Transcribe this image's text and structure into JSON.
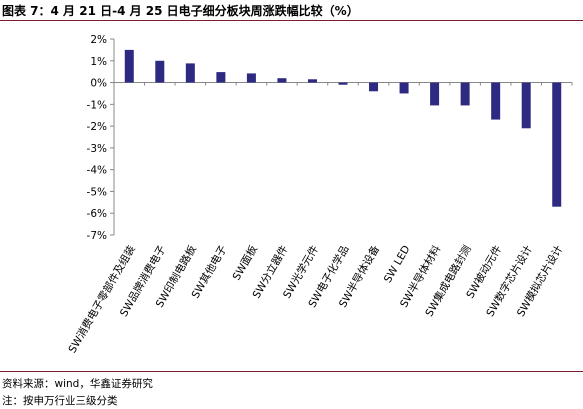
{
  "title": "图表 7：4 月 21 日-4 月 25 日电子细分板块周涨跌幅比较（%）",
  "colors": {
    "bar": "#2e2a82",
    "rule": "#7f1d2f",
    "axis": "#888888"
  },
  "chart_data": {
    "type": "bar",
    "categories": [
      "SW消费电子零部件及组装",
      "SW品牌消费电子",
      "SW印制电路板",
      "SW其他电子",
      "SW面板",
      "SW分立器件",
      "SW光学元件",
      "SW电子化学品",
      "SW半导体设备",
      "SW LED",
      "SW半导体材料",
      "SW集成电路封测",
      "SW被动元件",
      "SW数字芯片设计",
      "SW模拟芯片设计"
    ],
    "values": [
      1.5,
      1.0,
      0.88,
      0.48,
      0.42,
      0.2,
      0.15,
      -0.1,
      -0.4,
      -0.5,
      -1.05,
      -1.05,
      -1.7,
      -2.1,
      -5.7
    ],
    "ylim": [
      -7,
      2
    ],
    "yticks": [
      "2%",
      "1%",
      "0%",
      "-1%",
      "-2%",
      "-3%",
      "-4%",
      "-5%",
      "-6%",
      "-7%"
    ],
    "xlabel": "",
    "ylabel": "",
    "grid": false
  },
  "footer": {
    "source": "资料来源：wind，华鑫证券研究",
    "note": "注：按申万行业三级分类"
  }
}
